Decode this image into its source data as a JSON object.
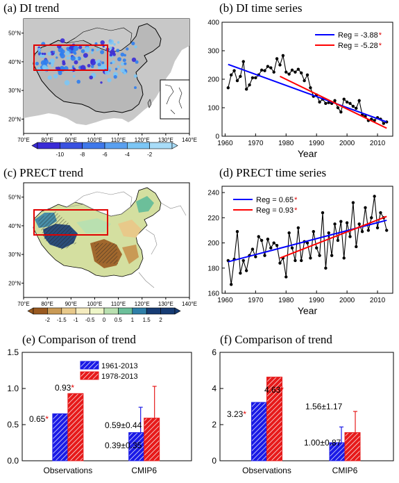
{
  "panels": {
    "a": {
      "title": "(a)  DI trend",
      "lon_ticks": [
        "70°E",
        "80°E",
        "90°E",
        "100°E",
        "110°E",
        "120°E",
        "130°E",
        "140°E"
      ],
      "lat_ticks": [
        "50°N",
        "40°N",
        "30°N",
        "20°N"
      ],
      "colorbar_labels": [
        "-10",
        "-8",
        "-6",
        "-4",
        "-2"
      ],
      "colors": {
        "land": "#c8c8c8",
        "point_dark": "#3a2bd6",
        "point_mid": "#2f7ef0",
        "point_light": "#7cc6f5",
        "box": "#e00000"
      }
    },
    "c": {
      "title": "(c)  PRECT trend",
      "lon_ticks": [
        "70°E",
        "80°E",
        "90°E",
        "100°E",
        "110°E",
        "120°E",
        "130°E",
        "140°E"
      ],
      "lat_ticks": [
        "50°N",
        "40°N",
        "30°N",
        "20°N"
      ],
      "colorbar_labels": [
        "-2",
        "-1.5",
        "-1",
        "-0.5",
        "0",
        "0.5",
        "1",
        "1.5",
        "2"
      ],
      "colorbar_colors": [
        "#9a5a20",
        "#c99a55",
        "#e8c98a",
        "#f5ecc0",
        "#eef6c8",
        "#b9e0b0",
        "#6cbf9a",
        "#2f7fa8",
        "#173c74"
      ]
    }
  },
  "chart_data": [
    {
      "id": "b",
      "type": "line",
      "title": "(b)  DI time series",
      "xlabel": "Year",
      "xlim": [
        1959,
        2015
      ],
      "ylim": [
        0,
        400
      ],
      "x_ticks": [
        "1960",
        "1970",
        "1980",
        "1990",
        "2000",
        "2010"
      ],
      "y_ticks": [
        "0",
        "100",
        "200",
        "300",
        "400"
      ],
      "series": [
        {
          "type": "line",
          "color": "#000000",
          "x": [
            1961,
            1962,
            1963,
            1964,
            1965,
            1966,
            1967,
            1968,
            1969,
            1970,
            1971,
            1972,
            1973,
            1974,
            1975,
            1976,
            1977,
            1978,
            1979,
            1980,
            1981,
            1982,
            1983,
            1984,
            1985,
            1986,
            1987,
            1988,
            1989,
            1990,
            1991,
            1992,
            1993,
            1994,
            1995,
            1996,
            1997,
            1998,
            1999,
            2000,
            2001,
            2002,
            2003,
            2004,
            2005,
            2006,
            2007,
            2008,
            2009,
            2010,
            2011,
            2012,
            2013
          ],
          "y": [
            170,
            215,
            230,
            195,
            210,
            262,
            165,
            180,
            205,
            205,
            215,
            232,
            230,
            245,
            240,
            225,
            272,
            250,
            283,
            225,
            218,
            232,
            225,
            235,
            222,
            195,
            215,
            170,
            140,
            145,
            120,
            130,
            115,
            118,
            115,
            125,
            100,
            85,
            130,
            120,
            115,
            105,
            98,
            125,
            75,
            70,
            55,
            60,
            55,
            65,
            60,
            45,
            50
          ]
        },
        {
          "type": "trend",
          "name": "Reg = -3.88",
          "color": "#0000ff",
          "x": [
            1961,
            2013
          ],
          "y": [
            252,
            50
          ]
        },
        {
          "type": "trend",
          "name": "Reg = -5.28",
          "color": "#ff0000",
          "x": [
            1978,
            2013
          ],
          "y": [
            210,
            28
          ]
        }
      ],
      "legend": [
        {
          "label": "Reg = -3.88",
          "star": "*",
          "color": "#0000ff"
        },
        {
          "label": "Reg = -5.28",
          "star": "*",
          "color": "#ff0000"
        }
      ],
      "legend_position": "top-right"
    },
    {
      "id": "d",
      "type": "line",
      "title": "(d)  PRECT time series",
      "xlabel": "Year",
      "xlim": [
        1959,
        2015
      ],
      "ylim": [
        160,
        245
      ],
      "x_ticks": [
        "1960",
        "1970",
        "1980",
        "1990",
        "2000",
        "2010"
      ],
      "y_ticks": [
        "160",
        "180",
        "200",
        "220",
        "240"
      ],
      "series": [
        {
          "type": "line",
          "color": "#000000",
          "x": [
            1961,
            1962,
            1963,
            1964,
            1965,
            1966,
            1967,
            1968,
            1969,
            1970,
            1971,
            1972,
            1973,
            1974,
            1975,
            1976,
            1977,
            1978,
            1979,
            1980,
            1981,
            1982,
            1983,
            1984,
            1985,
            1986,
            1987,
            1988,
            1989,
            1990,
            1991,
            1992,
            1993,
            1994,
            1995,
            1996,
            1997,
            1998,
            1999,
            2000,
            2001,
            2002,
            2003,
            2004,
            2005,
            2006,
            2007,
            2008,
            2009,
            2010,
            2011,
            2012,
            2013
          ],
          "y": [
            186,
            167,
            187,
            209,
            176,
            186,
            178,
            190,
            195,
            189,
            205,
            202,
            190,
            203,
            196,
            200,
            198,
            184,
            188,
            173,
            208,
            196,
            186,
            212,
            186,
            201,
            200,
            188,
            209,
            196,
            190,
            224,
            180,
            208,
            190,
            215,
            202,
            217,
            188,
            216,
            205,
            232,
            197,
            215,
            209,
            228,
            210,
            220,
            237,
            212,
            224,
            220,
            210
          ]
        },
        {
          "type": "trend",
          "name": "Reg = 0.65",
          "color": "#0000ff",
          "x": [
            1961,
            2013
          ],
          "y": [
            185,
            218
          ]
        },
        {
          "type": "trend",
          "name": "Reg = 0.93",
          "color": "#ff0000",
          "x": [
            1978,
            2013
          ],
          "y": [
            188,
            221
          ]
        }
      ],
      "legend": [
        {
          "label": "Reg = 0.65",
          "star": "*",
          "color": "#0000ff"
        },
        {
          "label": "Reg = 0.93",
          "star": "*",
          "color": "#ff0000"
        }
      ],
      "legend_position": "top-left"
    },
    {
      "id": "e",
      "type": "bar",
      "title": "(e)  Comparison of trend",
      "categories": [
        "Observations",
        "CMIP6"
      ],
      "ylim": [
        0,
        1.5
      ],
      "y_ticks": [
        "0.0",
        "0.5",
        "1.0",
        "1.5"
      ],
      "series": [
        {
          "name": "1961-2013",
          "color": "#1a1ae6",
          "values": [
            0.65,
            0.39
          ],
          "errors": [
            null,
            0.35
          ]
        },
        {
          "name": "1978-2013",
          "color": "#e61a1a",
          "values": [
            0.93,
            0.59
          ],
          "errors": [
            null,
            0.44
          ]
        }
      ],
      "labels": [
        {
          "text": "0.65",
          "star": "*"
        },
        {
          "text": "0.39±0.35",
          "star": ""
        },
        {
          "text": "0.93",
          "star": "*"
        },
        {
          "text": "0.59±0.44",
          "star": ""
        }
      ],
      "legend_position": "top-left"
    },
    {
      "id": "f",
      "type": "bar",
      "title": "(f)  Comparison of trend",
      "categories": [
        "Observations",
        "CMIP6"
      ],
      "ylim": [
        0,
        6
      ],
      "y_ticks": [
        "0",
        "2",
        "4",
        "6"
      ],
      "series": [
        {
          "name": "1961-2013",
          "color": "#1a1ae6",
          "values": [
            3.23,
            1.0
          ],
          "errors": [
            null,
            0.87
          ]
        },
        {
          "name": "1978-2013",
          "color": "#e61a1a",
          "values": [
            4.63,
            1.56
          ],
          "errors": [
            null,
            1.17
          ]
        }
      ],
      "labels": [
        {
          "text": "3.23",
          "star": "*"
        },
        {
          "text": "1.00±0.87",
          "star": ""
        },
        {
          "text": "4.63",
          "star": "*"
        },
        {
          "text": "1.56±1.17",
          "star": ""
        }
      ]
    }
  ]
}
